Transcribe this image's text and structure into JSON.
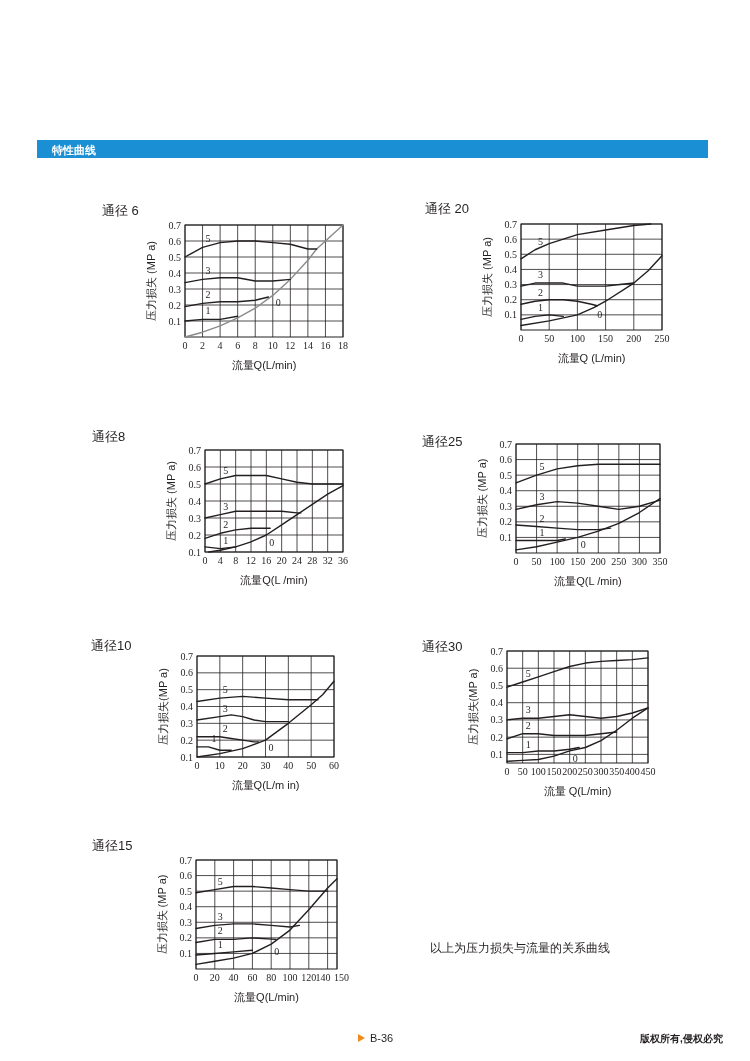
{
  "chart_data": [
    {
      "type": "line",
      "title": "通径 6",
      "xlabel": "流量Q(L/min)",
      "ylabel": "压力损失 (MP a)",
      "xlim": [
        0,
        18
      ],
      "ylim": [
        0,
        0.7
      ],
      "xticks": [
        0,
        2,
        4,
        6,
        8,
        10,
        12,
        14,
        16,
        18
      ],
      "yticks": [
        0.1,
        0.2,
        0.3,
        0.4,
        0.5,
        0.6,
        0.7
      ],
      "grid": true,
      "marker": "none",
      "line_style": "solid",
      "annotations": [
        "特性曲线"
      ],
      "series": [
        {
          "name": "0",
          "color": "#8a8a8a",
          "x": [
            0,
            2,
            4,
            6,
            8,
            10,
            12,
            14,
            15,
            16,
            18
          ],
          "values": [
            0,
            0.03,
            0.07,
            0.12,
            0.18,
            0.26,
            0.36,
            0.48,
            0.55,
            0.6,
            0.7
          ]
        },
        {
          "name": "1",
          "color": "#231f20",
          "x": [
            0,
            2,
            4,
            6
          ],
          "values": [
            0.1,
            0.11,
            0.11,
            0.13
          ]
        },
        {
          "name": "2",
          "color": "#231f20",
          "x": [
            0,
            2,
            4,
            6,
            8,
            9.5
          ],
          "values": [
            0.19,
            0.21,
            0.22,
            0.22,
            0.23,
            0.25
          ]
        },
        {
          "name": "3",
          "color": "#231f20",
          "x": [
            0,
            2,
            4,
            6,
            8,
            10,
            12
          ],
          "values": [
            0.34,
            0.36,
            0.37,
            0.37,
            0.35,
            0.35,
            0.36
          ]
        },
        {
          "name": "5",
          "color": "#231f20",
          "x": [
            0,
            2,
            4,
            6,
            8,
            10,
            12,
            14,
            15
          ],
          "values": [
            0.5,
            0.56,
            0.59,
            0.6,
            0.6,
            0.59,
            0.58,
            0.55,
            0.55
          ]
        }
      ]
    },
    {
      "type": "line",
      "title": "通径 20",
      "xlabel": "流量Q (L/min)",
      "ylabel": "压力损失 (MP a)",
      "xlim": [
        0,
        250
      ],
      "ylim": [
        0,
        0.7
      ],
      "xticks": [
        0,
        50,
        100,
        150,
        200,
        250
      ],
      "yticks": [
        0.1,
        0.2,
        0.3,
        0.4,
        0.5,
        0.6,
        0.7
      ],
      "grid": true,
      "marker": "none",
      "line_style": "solid",
      "series": [
        {
          "name": "0",
          "color": "#231f20",
          "x": [
            0,
            50,
            100,
            130,
            150,
            200,
            225,
            250
          ],
          "values": [
            0.03,
            0.06,
            0.1,
            0.15,
            0.19,
            0.31,
            0.39,
            0.49
          ]
        },
        {
          "name": "1",
          "color": "#231f20",
          "x": [
            0,
            25,
            50,
            75
          ],
          "values": [
            0.07,
            0.09,
            0.1,
            0.09
          ]
        },
        {
          "name": "2",
          "color": "#231f20",
          "x": [
            0,
            25,
            50,
            75,
            100,
            125,
            135
          ],
          "values": [
            0.17,
            0.19,
            0.2,
            0.2,
            0.19,
            0.17,
            0.16
          ]
        },
        {
          "name": "3",
          "color": "#231f20",
          "x": [
            0,
            25,
            50,
            75,
            100,
            150,
            175,
            200
          ],
          "values": [
            0.29,
            0.31,
            0.31,
            0.31,
            0.29,
            0.29,
            0.3,
            0.31
          ]
        },
        {
          "name": "5",
          "color": "#231f20",
          "x": [
            0,
            25,
            50,
            100,
            150,
            200,
            230
          ],
          "values": [
            0.47,
            0.53,
            0.57,
            0.63,
            0.66,
            0.69,
            0.7
          ]
        }
      ]
    },
    {
      "type": "line",
      "title": "通径8",
      "xlabel": "流量Q(L /min)",
      "ylabel": "压力损失 (MP a)",
      "xlim": [
        0,
        36
      ],
      "ylim": [
        0.1,
        0.7
      ],
      "xticks": [
        0,
        4,
        8,
        12,
        16,
        20,
        24,
        28,
        32,
        36
      ],
      "yticks": [
        0.1,
        0.2,
        0.3,
        0.4,
        0.5,
        0.6,
        0.7
      ],
      "grid": true,
      "marker": "none",
      "line_style": "solid",
      "series": [
        {
          "name": "0",
          "color": "#231f20",
          "x": [
            1,
            4,
            8,
            12,
            16,
            20,
            24,
            28,
            32,
            36
          ],
          "values": [
            0.1,
            0.11,
            0.13,
            0.16,
            0.2,
            0.26,
            0.32,
            0.38,
            0.44,
            0.49
          ]
        },
        {
          "name": "1",
          "color": "#231f20",
          "x": [
            0,
            4,
            8
          ],
          "values": [
            0.13,
            0.12,
            0.13
          ]
        },
        {
          "name": "2",
          "color": "#231f20",
          "x": [
            0,
            4,
            8,
            12,
            16,
            17
          ],
          "values": [
            0.18,
            0.21,
            0.23,
            0.24,
            0.24,
            0.24
          ]
        },
        {
          "name": "3",
          "color": "#231f20",
          "x": [
            0,
            4,
            8,
            12,
            16,
            20,
            24,
            25
          ],
          "values": [
            0.3,
            0.32,
            0.34,
            0.34,
            0.34,
            0.34,
            0.33,
            0.33
          ]
        },
        {
          "name": "5",
          "color": "#231f20",
          "x": [
            0,
            4,
            8,
            12,
            16,
            20,
            24,
            28,
            32,
            36
          ],
          "values": [
            0.5,
            0.53,
            0.55,
            0.55,
            0.55,
            0.53,
            0.51,
            0.5,
            0.5,
            0.5
          ]
        }
      ]
    },
    {
      "type": "line",
      "title": "通径25",
      "xlabel": "流量Q(L /min)",
      "ylabel": "压力损失 (MP a)",
      "xlim": [
        0,
        350
      ],
      "ylim": [
        0,
        0.7
      ],
      "xticks": [
        0,
        50,
        100,
        150,
        200,
        250,
        300,
        350
      ],
      "yticks": [
        0.1,
        0.2,
        0.3,
        0.4,
        0.5,
        0.6,
        0.7
      ],
      "grid": true,
      "marker": "none",
      "line_style": "solid",
      "series": [
        {
          "name": "0",
          "color": "#231f20",
          "x": [
            0,
            50,
            100,
            150,
            200,
            250,
            300,
            350
          ],
          "values": [
            0.02,
            0.04,
            0.07,
            0.1,
            0.14,
            0.19,
            0.26,
            0.35
          ]
        },
        {
          "name": "1",
          "color": "#231f20",
          "x": [
            0,
            50,
            100,
            120
          ],
          "values": [
            0.08,
            0.08,
            0.08,
            0.09
          ]
        },
        {
          "name": "2",
          "color": "#231f20",
          "x": [
            0,
            50,
            100,
            150,
            200,
            230
          ],
          "values": [
            0.18,
            0.17,
            0.16,
            0.15,
            0.15,
            0.16
          ]
        },
        {
          "name": "3",
          "color": "#231f20",
          "x": [
            0,
            50,
            100,
            150,
            200,
            250,
            300,
            350
          ],
          "values": [
            0.28,
            0.31,
            0.33,
            0.32,
            0.3,
            0.28,
            0.3,
            0.34
          ]
        },
        {
          "name": "5",
          "color": "#231f20",
          "x": [
            0,
            50,
            100,
            150,
            200,
            250,
            300,
            350
          ],
          "values": [
            0.45,
            0.5,
            0.54,
            0.56,
            0.57,
            0.57,
            0.57,
            0.57
          ]
        }
      ]
    },
    {
      "type": "line",
      "title": "通径10",
      "xlabel": "流量Q(L/m in)",
      "ylabel": "压力损失(MP a)",
      "xlim": [
        0,
        60
      ],
      "ylim": [
        0.1,
        0.7
      ],
      "xticks": [
        0,
        10,
        20,
        30,
        40,
        50,
        60
      ],
      "yticks": [
        0.1,
        0.2,
        0.3,
        0.4,
        0.5,
        0.6,
        0.7
      ],
      "grid": true,
      "marker": "none",
      "line_style": "solid",
      "series": [
        {
          "name": "0",
          "color": "#231f20",
          "x": [
            0,
            10,
            20,
            30,
            40,
            50,
            55,
            60
          ],
          "values": [
            0.1,
            0.12,
            0.15,
            0.2,
            0.3,
            0.41,
            0.47,
            0.55
          ]
        },
        {
          "name": "1",
          "color": "#231f20",
          "x": [
            0,
            5,
            10,
            15
          ],
          "values": [
            0.16,
            0.16,
            0.14,
            0.14
          ]
        },
        {
          "name": "2",
          "color": "#231f20",
          "x": [
            0,
            10,
            15,
            20,
            25,
            27
          ],
          "values": [
            0.22,
            0.22,
            0.21,
            0.2,
            0.19,
            0.19
          ]
        },
        {
          "name": "3",
          "color": "#231f20",
          "x": [
            0,
            10,
            15,
            20,
            25,
            30,
            35,
            40
          ],
          "values": [
            0.32,
            0.34,
            0.35,
            0.34,
            0.32,
            0.31,
            0.31,
            0.31
          ]
        },
        {
          "name": "5",
          "color": "#231f20",
          "x": [
            0,
            10,
            20,
            30,
            40,
            50,
            53
          ],
          "values": [
            0.43,
            0.45,
            0.46,
            0.45,
            0.44,
            0.44,
            0.44
          ]
        }
      ]
    },
    {
      "type": "line",
      "title": "通径30",
      "xlabel": "流量 Q(L/min)",
      "ylabel": "压力损失(MP a)",
      "xlim": [
        0,
        450
      ],
      "ylim": [
        0.05,
        0.7
      ],
      "xticks": [
        0,
        50,
        100,
        150,
        200,
        250,
        300,
        350,
        400,
        450
      ],
      "yticks": [
        0.1,
        0.2,
        0.3,
        0.4,
        0.5,
        0.6,
        0.7
      ],
      "grid": true,
      "marker": "none",
      "line_style": "solid",
      "series": [
        {
          "name": "0",
          "color": "#231f20",
          "x": [
            0,
            50,
            100,
            150,
            200,
            250,
            300,
            350,
            400,
            450
          ],
          "values": [
            0.06,
            0.065,
            0.07,
            0.09,
            0.12,
            0.14,
            0.18,
            0.24,
            0.31,
            0.37
          ]
        },
        {
          "name": "1",
          "color": "#231f20",
          "x": [
            0,
            50,
            100,
            150,
            200,
            230
          ],
          "values": [
            0.11,
            0.11,
            0.12,
            0.12,
            0.13,
            0.14
          ]
        },
        {
          "name": "2",
          "color": "#231f20",
          "x": [
            0,
            50,
            100,
            150,
            200,
            250,
            300,
            350
          ],
          "values": [
            0.19,
            0.22,
            0.22,
            0.21,
            0.21,
            0.21,
            0.22,
            0.23
          ]
        },
        {
          "name": "3",
          "color": "#231f20",
          "x": [
            0,
            50,
            100,
            150,
            200,
            250,
            300,
            350,
            400,
            450
          ],
          "values": [
            0.3,
            0.31,
            0.31,
            0.32,
            0.33,
            0.32,
            0.31,
            0.32,
            0.34,
            0.37
          ]
        },
        {
          "name": "5",
          "color": "#231f20",
          "x": [
            0,
            50,
            100,
            150,
            200,
            250,
            300,
            350,
            400,
            450
          ],
          "values": [
            0.49,
            0.52,
            0.55,
            0.58,
            0.61,
            0.63,
            0.64,
            0.645,
            0.65,
            0.66
          ]
        }
      ]
    },
    {
      "type": "line",
      "title": "通径15",
      "xlabel": "流量Q(L/min)",
      "ylabel": "压力损失 (MP a)",
      "xlim": [
        0,
        150
      ],
      "ylim": [
        0,
        0.7
      ],
      "xticks": [
        0,
        20,
        40,
        60,
        80,
        100,
        120,
        140,
        150
      ],
      "yticks": [
        0.1,
        0.2,
        0.3,
        0.4,
        0.5,
        0.6,
        0.7
      ],
      "grid": true,
      "marker": "none",
      "line_style": "solid",
      "annotations": [
        "以上为压力损失与流量的关系曲线",
        "B-36",
        "版权所有,侵权必究"
      ],
      "series": [
        {
          "name": "0",
          "color": "#231f20",
          "x": [
            0,
            20,
            40,
            60,
            80,
            100,
            120,
            140,
            150
          ],
          "values": [
            0.03,
            0.05,
            0.07,
            0.1,
            0.16,
            0.25,
            0.38,
            0.52,
            0.58
          ]
        },
        {
          "name": "1",
          "color": "#231f20",
          "x": [
            0,
            20,
            40,
            60
          ],
          "values": [
            0.09,
            0.1,
            0.11,
            0.12
          ]
        },
        {
          "name": "2",
          "color": "#231f20",
          "x": [
            0,
            20,
            40,
            60,
            85
          ],
          "values": [
            0.17,
            0.19,
            0.19,
            0.2,
            0.19
          ]
        },
        {
          "name": "3",
          "color": "#231f20",
          "x": [
            0,
            20,
            40,
            60,
            80,
            100,
            110
          ],
          "values": [
            0.26,
            0.28,
            0.29,
            0.29,
            0.28,
            0.27,
            0.28
          ]
        },
        {
          "name": "5",
          "color": "#231f20",
          "x": [
            0,
            20,
            40,
            60,
            80,
            100,
            120,
            140
          ],
          "values": [
            0.49,
            0.51,
            0.53,
            0.53,
            0.52,
            0.51,
            0.5,
            0.5
          ]
        }
      ]
    }
  ]
}
